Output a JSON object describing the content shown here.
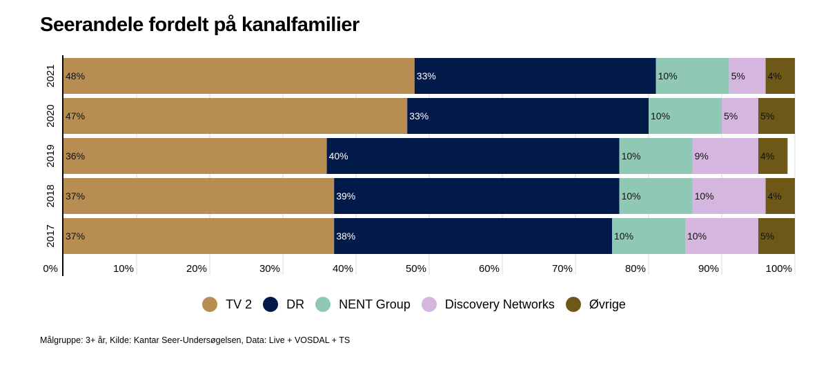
{
  "title": "Seerandele fordelt på kanalfamilier",
  "source": "Målgruppe: 3+ år, Kilde: Kantar Seer-Undersøgelsen, Data: Live + VOSDAL + TS",
  "chart_data": {
    "type": "bar",
    "orientation": "horizontal",
    "stacked": true,
    "title": "Seerandele fordelt på kanalfamilier",
    "categories": [
      "2021",
      "2020",
      "2019",
      "2018",
      "2017"
    ],
    "series": [
      {
        "name": "TV 2",
        "color": "#B88D52",
        "values": [
          48,
          47,
          36,
          37,
          37
        ],
        "labels": [
          "48%",
          "47%",
          "36%",
          "37%",
          "37%"
        ]
      },
      {
        "name": "DR",
        "color": "#021A4A",
        "values": [
          33,
          33,
          40,
          39,
          38
        ],
        "labels": [
          "33%",
          "33%",
          "40%",
          "39%",
          "38%"
        ]
      },
      {
        "name": "NENT Group",
        "color": "#8FC9B5",
        "values": [
          10,
          10,
          10,
          10,
          10
        ],
        "labels": [
          "10%",
          "10%",
          "10%",
          "10%",
          "10%"
        ]
      },
      {
        "name": "Discovery Networks",
        "color": "#D4B6DF",
        "values": [
          5,
          5,
          9,
          10,
          10
        ],
        "labels": [
          "5%",
          "5%",
          "9%",
          "10%",
          "10%"
        ]
      },
      {
        "name": "Øvrige",
        "color": "#6E5817",
        "values": [
          4,
          5,
          4,
          4,
          5
        ],
        "labels": [
          "4%",
          "5%",
          "4%",
          "4%",
          "5%"
        ]
      }
    ],
    "xlim": [
      0,
      100
    ],
    "xticks": [
      "0%",
      "10%",
      "20%",
      "30%",
      "40%",
      "50%",
      "60%",
      "70%",
      "80%",
      "90%",
      "100%"
    ],
    "grid": true,
    "legend": "bottom-center"
  }
}
